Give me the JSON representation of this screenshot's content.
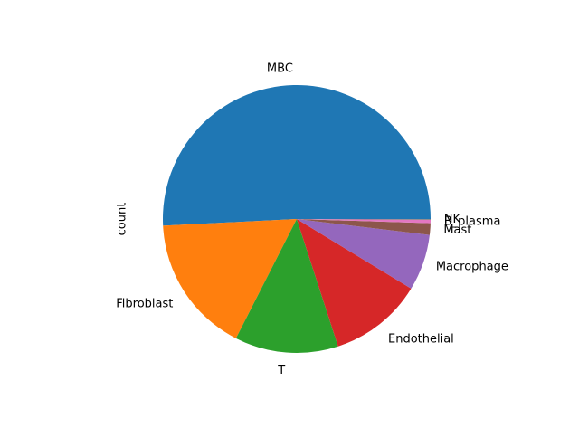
{
  "chart_data": {
    "type": "pie",
    "ylabel": "count",
    "slices": [
      {
        "label": "MBC",
        "value": 50.8,
        "color": "#1f77b4"
      },
      {
        "label": "Fibroblast",
        "value": 16.7,
        "color": "#ff7f0e"
      },
      {
        "label": "T",
        "value": 12.5,
        "color": "#2ca02c"
      },
      {
        "label": "Endothelial",
        "value": 11.3,
        "color": "#d62728"
      },
      {
        "label": "Macrophage",
        "value": 6.8,
        "color": "#9467bd"
      },
      {
        "label": "Mast",
        "value": 1.4,
        "color": "#8c564b"
      },
      {
        "label": "B_plasma",
        "value": 0.4,
        "color": "#e377c2"
      },
      {
        "label": "NK",
        "value": 0.1,
        "color": "#7f7f7f"
      }
    ],
    "start_angle": "0 degrees (3 o'clock), counter-clockwise",
    "legend": "none"
  }
}
